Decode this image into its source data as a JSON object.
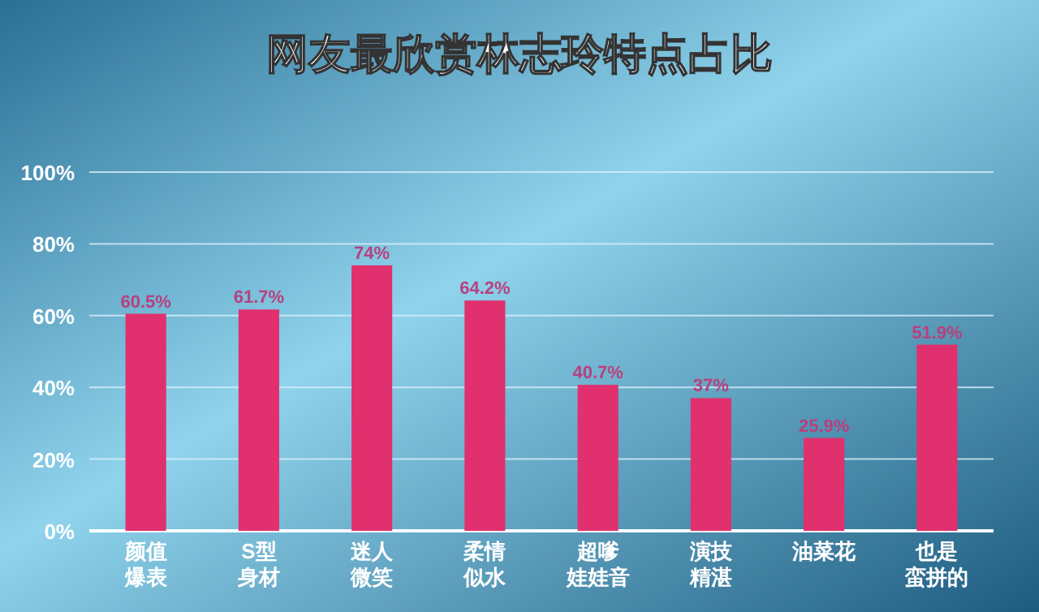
{
  "chart_data": {
    "type": "bar",
    "title": "网友最欣赏林志玲特点占比",
    "categories": [
      "颜值爆表",
      "S型身材",
      "迷人微笑",
      "柔情似水",
      "超嗲娃娃音",
      "演技精湛",
      "油菜花",
      "也是蛮拼的"
    ],
    "values": [
      60.5,
      61.7,
      74,
      64.2,
      40.7,
      37,
      25.9,
      51.9
    ],
    "color": "#e0306e",
    "ylim": [
      0,
      100
    ],
    "yticks": [
      {
        "value": 0,
        "label": "0%"
      },
      {
        "value": 20,
        "label": "20%"
      },
      {
        "value": 40,
        "label": "40%"
      },
      {
        "value": 60,
        "label": "60%"
      },
      {
        "value": 80,
        "label": "80%"
      },
      {
        "value": 100,
        "label": "100%"
      }
    ],
    "value_labels": [
      "60.5%",
      "61.7%",
      "74%",
      "64.2%",
      "40.7%",
      "37%",
      "25.9%",
      "51.9%"
    ],
    "grid": "y"
  }
}
